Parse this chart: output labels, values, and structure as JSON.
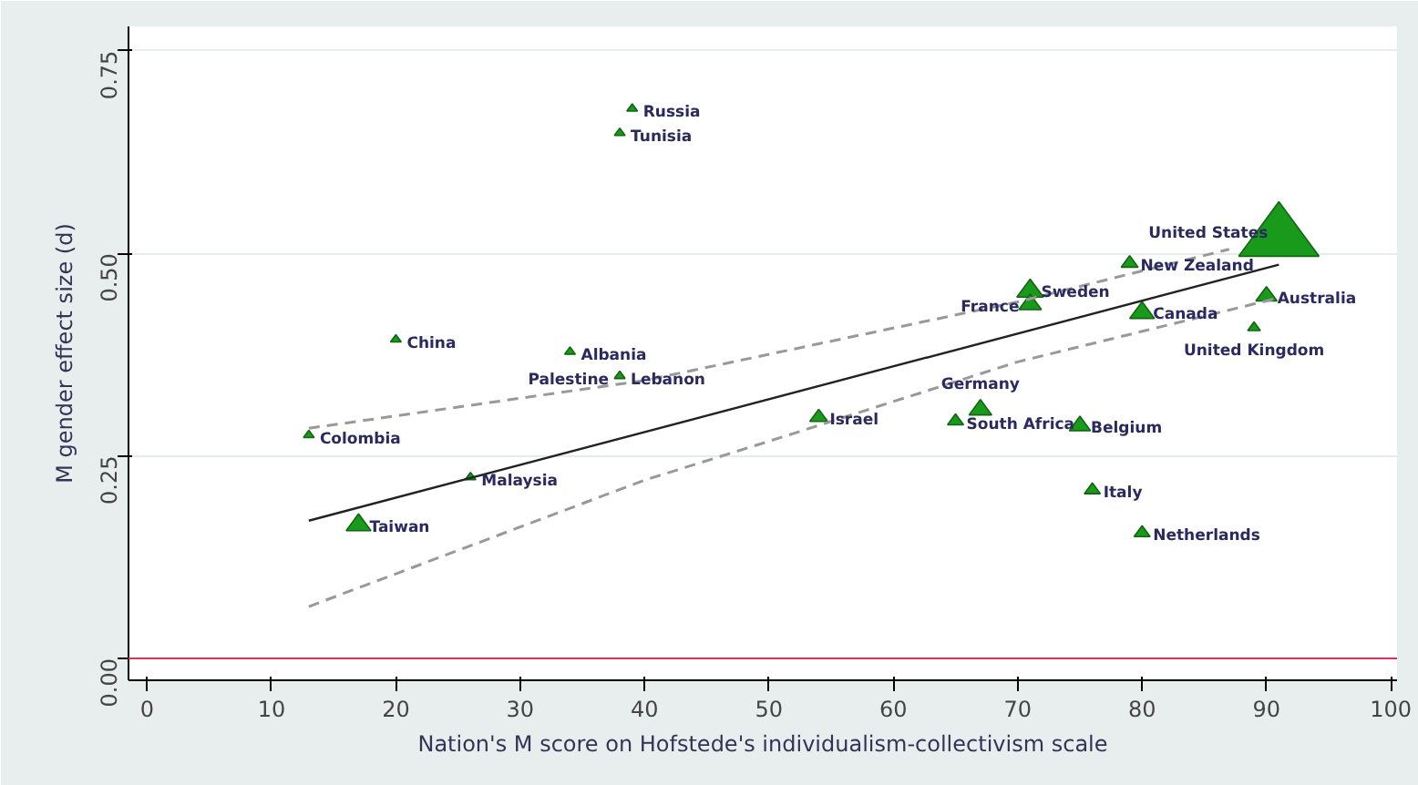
{
  "chart_data": {
    "type": "bubble",
    "xlabel": "Nation's M score on Hofstede's individualism-collectivism scale",
    "ylabel": "M gender effect size (d)",
    "x": [
      39,
      38,
      20,
      34,
      38,
      13,
      26,
      17,
      54,
      65,
      67,
      75,
      76,
      80,
      80,
      71,
      71,
      79,
      91,
      90,
      89
    ],
    "series": [
      {
        "color": "#1a9a1a",
        "marker": "triangle",
        "values": [
          0.68,
          0.65,
          0.395,
          0.38,
          0.35,
          0.277,
          0.225,
          0.168,
          0.3,
          0.295,
          0.31,
          0.29,
          0.21,
          0.157,
          0.43,
          0.457,
          0.44,
          0.49,
          0.53,
          0.45,
          0.41
        ],
        "sizes": [
          0.018,
          0.018,
          0.018,
          0.018,
          0.018,
          0.018,
          0.018,
          0.095,
          0.05,
          0.04,
          0.08,
          0.07,
          0.04,
          0.04,
          0.095,
          0.11,
          0.08,
          0.045,
          1,
          0.07,
          0.025
        ]
      },
      {
        "type": "line",
        "color": "#222222",
        "line_style": "solid",
        "x": [
          13,
          91
        ],
        "values": [
          0.17,
          0.486
        ]
      },
      {
        "type": "line",
        "color": "#999999",
        "line_style": "dashed",
        "x": [
          13,
          40,
          70,
          87
        ],
        "values": [
          0.284,
          0.343,
          0.44,
          0.505
        ]
      },
      {
        "type": "line",
        "color": "#999999",
        "line_style": "dashed",
        "x": [
          13,
          40,
          50,
          70,
          91
        ],
        "values": [
          0.064,
          0.22,
          0.268,
          0.366,
          0.445
        ]
      }
    ],
    "annotations": [
      {
        "text": "Russia",
        "x": 39,
        "y": 0.68
      },
      {
        "text": "Tunisia",
        "x": 38,
        "y": 0.65
      },
      {
        "text": "China",
        "x": 20,
        "y": 0.395
      },
      {
        "text": "Albania",
        "x": 34,
        "y": 0.38
      },
      {
        "text": "Lebanon",
        "x": 38,
        "y": 0.35
      },
      {
        "text": "Palestine",
        "x": 38,
        "y": 0.35
      },
      {
        "text": "Colombia",
        "x": 13,
        "y": 0.277
      },
      {
        "text": "Malaysia",
        "x": 26,
        "y": 0.225
      },
      {
        "text": "Taiwan",
        "x": 17,
        "y": 0.168
      },
      {
        "text": "Israel",
        "x": 54,
        "y": 0.3
      },
      {
        "text": "South Africa",
        "x": 65,
        "y": 0.295
      },
      {
        "text": "Germany",
        "x": 67,
        "y": 0.31
      },
      {
        "text": "Belgium",
        "x": 75,
        "y": 0.29
      },
      {
        "text": "Italy",
        "x": 76,
        "y": 0.21
      },
      {
        "text": "Netherlands",
        "x": 80,
        "y": 0.157
      },
      {
        "text": "Canada",
        "x": 80,
        "y": 0.43
      },
      {
        "text": "Sweden",
        "x": 71,
        "y": 0.457
      },
      {
        "text": "France",
        "x": 71,
        "y": 0.44
      },
      {
        "text": "New Zealand",
        "x": 79,
        "y": 0.49
      },
      {
        "text": "United States",
        "x": 91,
        "y": 0.53
      },
      {
        "text": "Australia",
        "x": 90,
        "y": 0.45
      },
      {
        "text": "United Kingdom",
        "x": 89,
        "y": 0.41
      }
    ],
    "ref_lines": [
      {
        "axis": "y",
        "value": 0,
        "color": "#e0305a"
      }
    ],
    "xlim": [
      -1.5,
      100.5
    ],
    "ylim": [
      -0.027,
      0.78
    ],
    "xticks": [
      0,
      10,
      20,
      30,
      40,
      50,
      60,
      70,
      80,
      90,
      100
    ],
    "yticks": [
      {
        "value": 0,
        "label": "0.00"
      },
      {
        "value": 0.25,
        "label": "0.25"
      },
      {
        "value": 0.5,
        "label": "0.50"
      },
      {
        "value": 0.75,
        "label": "0.75"
      }
    ],
    "grid": "y"
  }
}
